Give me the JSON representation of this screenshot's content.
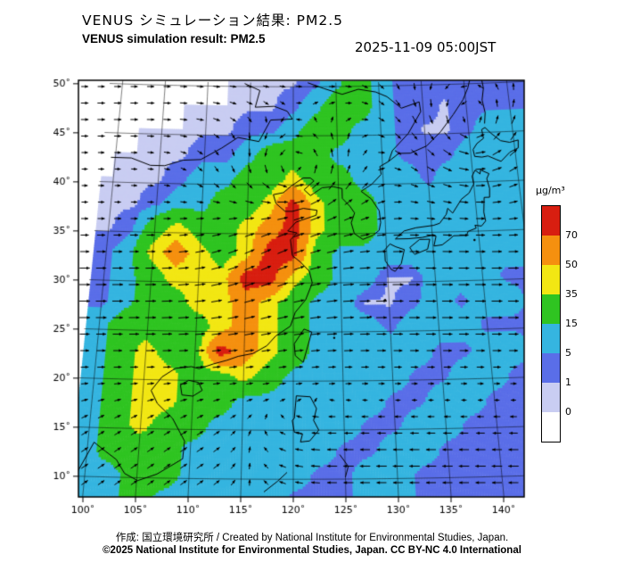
{
  "header": {
    "title_jp": "VENUS シミュレーション結果: PM2.5",
    "title_en": "VENUS simulation result: PM2.5",
    "timestamp": "2025-11-09 05:00JST"
  },
  "footer": {
    "credit": "作成:  国立環境研究所 / Created by National Institute for Environmental Studies, Japan.",
    "copyright": "©2025 National Institute for Environmental Studies, Japan. CC BY-NC 4.0 International"
  },
  "chart_data": {
    "type": "heatmap",
    "title": "VENUS simulation result: PM2.5",
    "units": "µg/m³",
    "region": "East Asia",
    "lon_range": [
      99.5,
      147
    ],
    "lat_range": [
      8.2,
      50.2
    ],
    "grid_on": true,
    "lon_tick_values": [
      100,
      105,
      110,
      115,
      120,
      125,
      130,
      135,
      140
    ],
    "lon_tick_labels": [
      "100˚",
      "105˚",
      "110˚",
      "115˚",
      "120˚",
      "125˚",
      "130˚",
      "135˚",
      "140˚"
    ],
    "lat_tick_values": [
      10,
      15,
      20,
      25,
      30,
      35,
      40,
      45,
      50
    ],
    "lat_tick_labels": [
      "10˚",
      "15˚",
      "20˚",
      "25˚",
      "30˚",
      "35˚",
      "40˚",
      "45˚",
      "50˚"
    ],
    "colorbar": {
      "label": "µg/m³",
      "tick_labels": [
        "70",
        "50",
        "35",
        "15",
        "5",
        "1",
        "0"
      ],
      "levels": [
        0,
        1,
        5,
        15,
        35,
        50,
        70
      ],
      "colors_top_to_bottom": [
        "#d81e10",
        "#f5900f",
        "#f2e713",
        "#2fc421",
        "#35b5e0",
        "#5a6ee8",
        "#c9cdf2",
        "#ffffff"
      ],
      "legend_position": "right"
    },
    "grid": {
      "lon_start": 100,
      "lon_step": 2.5,
      "cols": 19,
      "lat_start": 50.5,
      "lat_step": -2.5,
      "rows": 18,
      "values_ugm3": [
        [
          0,
          0,
          0,
          0,
          0,
          0,
          0,
          0.5,
          0.5,
          3,
          10,
          25,
          10,
          3,
          3,
          3,
          3,
          3,
          3
        ],
        [
          0,
          0,
          0,
          0,
          0,
          0,
          0.5,
          0.5,
          3,
          10,
          25,
          25,
          10,
          3,
          3,
          0.5,
          3,
          3,
          3
        ],
        [
          0,
          0,
          0,
          0,
          0.5,
          0.5,
          3,
          3,
          10,
          25,
          25,
          10,
          10,
          3,
          0.5,
          0.5,
          3,
          10,
          10
        ],
        [
          0,
          0,
          0.5,
          0.5,
          3,
          3,
          10,
          25,
          25,
          25,
          10,
          10,
          10,
          3,
          3,
          3,
          10,
          10,
          10
        ],
        [
          0,
          0.5,
          0.5,
          3,
          10,
          10,
          25,
          25,
          42,
          25,
          25,
          10,
          10,
          10,
          3,
          10,
          10,
          10,
          10
        ],
        [
          0.5,
          0.5,
          3,
          10,
          10,
          25,
          25,
          42,
          80,
          42,
          25,
          25,
          10,
          10,
          10,
          10,
          10,
          10,
          10
        ],
        [
          0.5,
          3,
          25,
          42,
          25,
          25,
          42,
          60,
          80,
          42,
          25,
          25,
          10,
          10,
          10,
          10,
          10,
          10,
          10
        ],
        [
          3,
          10,
          42,
          60,
          42,
          25,
          42,
          80,
          80,
          25,
          10,
          10,
          10,
          10,
          10,
          10,
          10,
          10,
          10
        ],
        [
          3,
          10,
          25,
          42,
          42,
          42,
          80,
          80,
          42,
          25,
          10,
          10,
          0.5,
          0.5,
          10,
          10,
          10,
          3,
          3
        ],
        [
          3,
          10,
          25,
          25,
          42,
          42,
          60,
          42,
          25,
          10,
          10,
          0.5,
          0.5,
          3,
          10,
          3,
          10,
          10,
          3
        ],
        [
          10,
          25,
          25,
          25,
          25,
          42,
          60,
          42,
          25,
          10,
          10,
          10,
          3,
          10,
          10,
          10,
          3,
          3,
          3
        ],
        [
          10,
          25,
          42,
          25,
          25,
          80,
          60,
          42,
          25,
          10,
          10,
          10,
          10,
          10,
          3,
          3,
          10,
          10,
          3
        ],
        [
          10,
          25,
          42,
          42,
          25,
          25,
          42,
          25,
          10,
          10,
          10,
          10,
          10,
          3,
          3,
          10,
          10,
          3,
          3
        ],
        [
          10,
          25,
          42,
          42,
          25,
          25,
          10,
          10,
          10,
          10,
          10,
          10,
          3,
          3,
          10,
          10,
          3,
          3,
          3
        ],
        [
          10,
          25,
          42,
          25,
          25,
          10,
          10,
          10,
          10,
          10,
          10,
          3,
          3,
          10,
          10,
          3,
          3,
          3,
          3
        ],
        [
          10,
          25,
          25,
          25,
          10,
          10,
          10,
          10,
          10,
          10,
          3,
          3,
          10,
          10,
          3,
          3,
          3,
          3,
          3
        ],
        [
          10,
          10,
          25,
          25,
          10,
          10,
          10,
          10,
          10,
          3,
          3,
          10,
          10,
          3,
          3,
          3,
          3,
          3,
          3
        ],
        [
          10,
          10,
          25,
          10,
          10,
          10,
          10,
          10,
          3,
          3,
          3,
          10,
          10,
          3,
          3,
          3,
          3,
          3,
          3
        ]
      ]
    },
    "wind": {
      "description": "near-surface wind vector arrows",
      "jet": {
        "lat": 28.5,
        "width": 8,
        "u": 1.15
      },
      "polar_westerly": {
        "lat": 47.5,
        "width": 5,
        "u": 0.5
      },
      "trades": {
        "lat": 11.5,
        "width": 5.5,
        "u_east_sector": -1.05,
        "u_west_sector": 0.5,
        "v_west_sector": 0.35,
        "sector_split_lon": [
          112,
          124
        ]
      },
      "monsoon_southerly": {
        "lon": 117,
        "lat": 33,
        "lon_width": 7,
        "lat_width": 8,
        "v": 0.5
      },
      "cyclones": [
        {
          "lon": 120.5,
          "lat": 41.5,
          "radius": 6.5,
          "strength": 1.2
        },
        {
          "lon": 140.5,
          "lat": 45.5,
          "radius": 8,
          "strength": 1.0
        }
      ]
    },
    "coastlines": [
      [
        [
          98.8,
          8.0
        ],
        [
          99.3,
          10.5
        ],
        [
          100.6,
          13.5
        ],
        [
          101.8,
          12.6
        ],
        [
          102.9,
          11.8
        ],
        [
          103.8,
          10.4
        ],
        [
          105.1,
          9.7
        ],
        [
          106.9,
          10.4
        ],
        [
          108.1,
          11.2
        ],
        [
          109.3,
          12.0
        ],
        [
          109.4,
          13.8
        ],
        [
          108.1,
          16.1
        ],
        [
          106.5,
          17.6
        ],
        [
          105.8,
          18.9
        ],
        [
          106.8,
          20.3
        ],
        [
          108.1,
          21.2
        ],
        [
          109.7,
          21.4
        ],
        [
          110.5,
          21.2
        ],
        [
          111.9,
          21.7
        ],
        [
          113.3,
          22.1
        ],
        [
          114.4,
          22.5
        ],
        [
          115.9,
          22.8
        ],
        [
          117.3,
          23.6
        ],
        [
          118.2,
          24.6
        ],
        [
          119.7,
          25.6
        ],
        [
          120.2,
          27.0
        ],
        [
          121.3,
          28.3
        ],
        [
          122.0,
          30.0
        ],
        [
          121.7,
          31.2
        ],
        [
          120.8,
          32.1
        ],
        [
          119.9,
          32.8
        ],
        [
          119.7,
          34.4
        ],
        [
          120.4,
          35.1
        ],
        [
          119.4,
          35.3
        ],
        [
          120.3,
          36.2
        ],
        [
          120.9,
          36.4
        ],
        [
          122.5,
          36.9
        ],
        [
          122.6,
          37.4
        ],
        [
          121.1,
          37.6
        ],
        [
          119.9,
          37.3
        ],
        [
          119.1,
          37.3
        ],
        [
          118.1,
          38.1
        ],
        [
          117.8,
          39.0
        ],
        [
          118.9,
          39.2
        ],
        [
          119.8,
          39.9
        ],
        [
          121.1,
          40.7
        ],
        [
          121.9,
          40.7
        ],
        [
          122.3,
          40.4
        ],
        [
          121.2,
          39.5
        ],
        [
          121.9,
          38.9
        ],
        [
          123.2,
          39.7
        ],
        [
          124.4,
          39.8
        ],
        [
          125.4,
          39.6
        ],
        [
          125.4,
          38.6
        ],
        [
          126.2,
          37.8
        ],
        [
          126.7,
          37.1
        ],
        [
          126.3,
          36.1
        ],
        [
          126.6,
          35.0
        ],
        [
          127.5,
          34.4
        ],
        [
          128.6,
          34.8
        ],
        [
          129.3,
          35.3
        ],
        [
          129.5,
          36.1
        ],
        [
          129.4,
          37.3
        ],
        [
          128.6,
          38.5
        ],
        [
          127.5,
          39.3
        ],
        [
          128.7,
          40.0
        ],
        [
          129.8,
          41.0
        ],
        [
          129.7,
          41.8
        ],
        [
          130.7,
          42.3
        ],
        [
          131.9,
          43.1
        ],
        [
          133.2,
          43.1
        ],
        [
          135.1,
          43.8
        ],
        [
          136.8,
          45.2
        ],
        [
          138.4,
          46.9
        ],
        [
          139.7,
          48.4
        ],
        [
          140.4,
          49.6
        ],
        [
          140.7,
          50.4
        ]
      ],
      [
        [
          99.5,
          42.5
        ],
        [
          101.8,
          42.5
        ],
        [
          104.0,
          41.8
        ],
        [
          105.6,
          41.8
        ],
        [
          107.6,
          42.4
        ],
        [
          109.6,
          42.5
        ],
        [
          111.9,
          43.7
        ],
        [
          113.7,
          44.8
        ],
        [
          116.1,
          44.4
        ],
        [
          117.4,
          46.6
        ],
        [
          119.9,
          46.7
        ],
        [
          119.3,
          47.5
        ],
        [
          117.8,
          48.0
        ],
        [
          115.6,
          47.9
        ],
        [
          116.1,
          49.6
        ],
        [
          114.3,
          50.3
        ]
      ],
      [
        [
          121.7,
          50.4
        ],
        [
          123.6,
          49.8
        ],
        [
          125.7,
          49.2
        ],
        [
          127.6,
          49.7
        ],
        [
          129.6,
          49.4
        ],
        [
          130.9,
          48.9
        ],
        [
          132.5,
          47.7
        ],
        [
          134.6,
          48.3
        ],
        [
          134.7,
          47.3
        ],
        [
          133.1,
          45.1
        ],
        [
          131.2,
          43.4
        ],
        [
          130.7,
          42.3
        ]
      ],
      [
        [
          108.7,
          19.5
        ],
        [
          109.5,
          20.0
        ],
        [
          110.5,
          19.8
        ],
        [
          110.9,
          19.0
        ],
        [
          110.0,
          18.4
        ],
        [
          108.9,
          18.5
        ],
        [
          108.7,
          19.5
        ]
      ],
      [
        [
          121.1,
          25.3
        ],
        [
          121.9,
          25.0
        ],
        [
          121.0,
          21.9
        ],
        [
          120.2,
          22.6
        ],
        [
          120.1,
          23.8
        ],
        [
          121.1,
          25.3
        ]
      ],
      [
        [
          130.4,
          31.3
        ],
        [
          129.8,
          32.2
        ],
        [
          129.8,
          33.3
        ],
        [
          130.4,
          33.9
        ],
        [
          131.0,
          33.6
        ],
        [
          131.9,
          33.3
        ],
        [
          131.5,
          31.9
        ],
        [
          130.8,
          31.1
        ],
        [
          130.4,
          31.3
        ]
      ],
      [
        [
          132.8,
          33.0
        ],
        [
          132.5,
          33.5
        ],
        [
          133.6,
          34.3
        ],
        [
          134.7,
          34.3
        ],
        [
          134.4,
          33.3
        ],
        [
          133.0,
          32.8
        ],
        [
          132.8,
          33.0
        ]
      ],
      [
        [
          131.0,
          34.4
        ],
        [
          132.4,
          34.4
        ],
        [
          133.9,
          34.5
        ],
        [
          135.0,
          34.7
        ],
        [
          135.4,
          34.6
        ],
        [
          135.1,
          33.6
        ],
        [
          136.0,
          33.7
        ],
        [
          136.9,
          34.3
        ],
        [
          137.3,
          34.6
        ],
        [
          138.7,
          34.6
        ],
        [
          138.9,
          35.0
        ],
        [
          139.8,
          35.3
        ],
        [
          139.7,
          35.6
        ],
        [
          140.4,
          35.5
        ],
        [
          140.9,
          36.0
        ],
        [
          140.8,
          36.9
        ],
        [
          141.0,
          38.4
        ],
        [
          141.6,
          38.4
        ],
        [
          141.7,
          39.3
        ],
        [
          141.5,
          40.3
        ],
        [
          141.8,
          40.8
        ],
        [
          140.9,
          41.2
        ],
        [
          140.8,
          40.8
        ],
        [
          140.3,
          41.2
        ],
        [
          139.9,
          40.6
        ],
        [
          140.0,
          39.8
        ],
        [
          139.4,
          38.9
        ],
        [
          138.5,
          38.3
        ],
        [
          137.4,
          36.9
        ],
        [
          136.9,
          37.4
        ],
        [
          136.7,
          36.8
        ],
        [
          135.9,
          35.9
        ],
        [
          135.2,
          35.7
        ],
        [
          133.3,
          35.5
        ],
        [
          132.0,
          35.2
        ],
        [
          131.0,
          34.4
        ]
      ],
      [
        [
          140.4,
          42.6
        ],
        [
          141.2,
          42.5
        ],
        [
          141.9,
          42.6
        ],
        [
          142.8,
          42.2
        ],
        [
          143.3,
          42.0
        ],
        [
          144.4,
          42.9
        ],
        [
          145.4,
          43.3
        ],
        [
          145.5,
          44.1
        ],
        [
          144.5,
          43.9
        ],
        [
          143.5,
          44.1
        ],
        [
          142.5,
          44.9
        ],
        [
          141.9,
          45.5
        ],
        [
          141.5,
          45.3
        ],
        [
          141.6,
          44.4
        ],
        [
          140.8,
          43.9
        ],
        [
          140.3,
          43.3
        ],
        [
          140.4,
          42.6
        ]
      ],
      [
        [
          141.9,
          45.9
        ],
        [
          142.1,
          47.0
        ],
        [
          141.9,
          48.3
        ],
        [
          142.2,
          49.5
        ],
        [
          142.1,
          50.4
        ]
      ],
      [
        [
          120.1,
          16.2
        ],
        [
          120.3,
          18.5
        ],
        [
          121.7,
          18.4
        ],
        [
          122.3,
          17.2
        ],
        [
          122.0,
          16.0
        ],
        [
          122.5,
          15.0
        ],
        [
          121.6,
          13.9
        ],
        [
          120.7,
          13.8
        ],
        [
          120.9,
          14.6
        ],
        [
          120.1,
          14.8
        ],
        [
          119.9,
          16.0
        ],
        [
          120.1,
          16.2
        ]
      ],
      [
        [
          117.2,
          8.7
        ],
        [
          118.5,
          9.8
        ],
        [
          119.4,
          10.7
        ]
      ],
      [
        [
          124.5,
          12.5
        ],
        [
          125.3,
          11.3
        ],
        [
          125.0,
          10.2
        ]
      ]
    ],
    "island_dots": [
      [
        124.2,
        24.4
      ],
      [
        128.0,
        26.5
      ],
      [
        129.6,
        28.2
      ],
      [
        139.5,
        34.1
      ]
    ]
  }
}
